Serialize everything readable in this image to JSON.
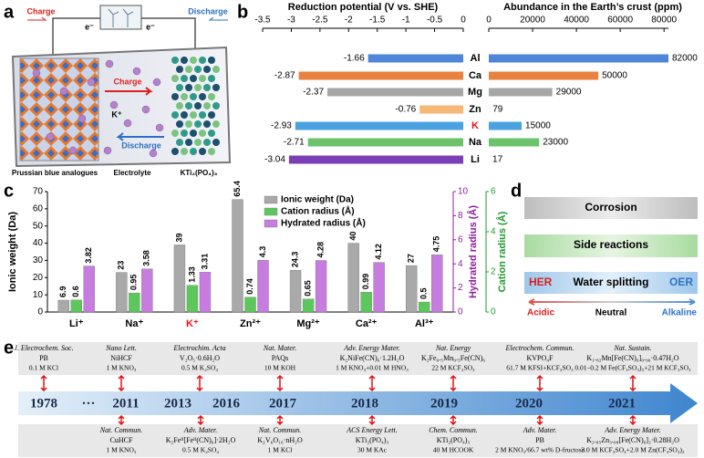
{
  "panel_labels": [
    "a",
    "b",
    "c",
    "d",
    "e"
  ],
  "panel_a": {
    "charge_top": "Charge",
    "e_left": "e⁻",
    "e_right": "e⁻",
    "discharge_top": "Discharge",
    "charge": "Charge",
    "ion": "K⁺",
    "discharge": "Discharge",
    "anode": "Prussian blue analogues",
    "electrolyte": "Electrolyte",
    "cathode": "KTi₂(PO₄)₃"
  },
  "chart_data": [
    {
      "type": "bar",
      "orientation": "horizontal",
      "categories": [
        "Al",
        "Ca",
        "Mg",
        "Zn",
        "K",
        "Na",
        "Li"
      ],
      "category_label_colors": [
        "#000000",
        "#000000",
        "#000000",
        "#000000",
        "#e8101a",
        "#000000",
        "#000000"
      ],
      "bar_colors": [
        "#4f86d8",
        "#e9823e",
        "#a6a6a6",
        "#f6b878",
        "#4aa3e0",
        "#6cc36c",
        "#7a3fb5"
      ],
      "series": [
        {
          "name": "Reduction potential (V vs. SHE)",
          "values": [
            -1.66,
            -2.87,
            -2.37,
            -0.76,
            -2.93,
            -2.71,
            -3.04
          ],
          "xlim": [
            -3.5,
            0
          ],
          "xticks": [
            -3.5,
            -3,
            -2.5,
            -2,
            -1.5,
            -1,
            -0.5,
            0
          ]
        },
        {
          "name": "Abundance in the Earth’s crust (ppm)",
          "values": [
            82000,
            50000,
            29000,
            79,
            15000,
            23000,
            17
          ],
          "xlim": [
            0,
            82000
          ],
          "xticks": [
            0,
            20000,
            40000,
            60000,
            80000
          ]
        }
      ]
    },
    {
      "type": "bar",
      "orientation": "vertical",
      "categories": [
        "Li⁺",
        "Na⁺",
        "K⁺",
        "Zn²⁺",
        "Mg²⁺",
        "Ca²⁺",
        "Al³⁺"
      ],
      "category_label_colors": [
        "#000000",
        "#000000",
        "#e8101a",
        "#000000",
        "#000000",
        "#000000",
        "#000000"
      ],
      "series": [
        {
          "name": "Ionic weight (Da)",
          "color": "#a9a9a9",
          "axis": "y",
          "values": [
            6.9,
            23,
            39,
            65.4,
            24.3,
            40,
            27
          ]
        },
        {
          "name": "Cation radius (Å)",
          "color": "#5cc85c",
          "axis": "y3",
          "values": [
            0.6,
            0.95,
            1.33,
            0.74,
            0.65,
            0.99,
            0.5
          ]
        },
        {
          "name": "Hydrated radius (Å)",
          "color": "#c77ce0",
          "axis": "y2",
          "values": [
            3.82,
            3.58,
            3.31,
            4.3,
            4.28,
            4.12,
            4.75
          ]
        }
      ],
      "ylabel": "Ionic weight (Da)",
      "ylim": [
        0,
        70
      ],
      "yticks": [
        0,
        10,
        20,
        30,
        40,
        50,
        60,
        70
      ],
      "y2label": "Hydrated radius (Å)",
      "y2color": "#8e1f9e",
      "y2lim": [
        0,
        10
      ],
      "y2ticks": [
        0,
        2,
        4,
        6,
        8,
        10
      ],
      "y3label": "Cation radius (Å)",
      "y3color": "#1f9a2e",
      "y3lim": [
        0,
        6
      ],
      "y3ticks": [
        0,
        2,
        4,
        6
      ]
    }
  ],
  "panel_d": {
    "bars": [
      "Corrosion",
      "Side reactions",
      "Water splitting"
    ],
    "her": "HER",
    "oer": "OER",
    "scale": [
      "Acidic",
      "Neutral",
      "Alkaline"
    ]
  },
  "panel_e": {
    "years": [
      "1978",
      "···",
      "2011",
      "2013",
      "2016",
      "2017",
      "2018",
      "2019",
      "2020",
      "2021"
    ],
    "top": [
      {
        "journal": "J. Electrochem. Soc.",
        "material": "PB",
        "electrolyte": "0.1 M KCl"
      },
      {
        "journal": "Nano Lett.",
        "material": "NiHCF",
        "electrolyte": "1 M KNO₃"
      },
      {
        "journal": "Electrochim. Acta",
        "material": "V₂O₅·0.6H₂O",
        "electrolyte": "0.5 M K₂SO₄"
      },
      {
        "journal": "Nat. Mater.",
        "material": "PAQs",
        "electrolyte": "10 M KOH"
      },
      {
        "journal": "Adv. Energy Mater.",
        "material": "K₂NiFe(CN)₆·1.2H₂O",
        "electrolyte": "1 M KNO₃+0.01 M HNO₃"
      },
      {
        "journal": "Nat. Energy",
        "material": "K₂Fe₀.₅Mn₀.₅Fe(CN)₆",
        "electrolyte": "22 M KCF₃SO₃"
      },
      {
        "journal": "Electrochem. Commun.",
        "material": "KVPO₄F",
        "electrolyte": "61.7 M KFSI+KCF₃SO₃"
      },
      {
        "journal": "Nat. Sustain.",
        "material": "K₁.₈₂Mn[Fe(CN)₆]₀.₉₆·0.47H₂O",
        "electrolyte": "0.01–0.2 M Fe(CF₃SO₃)₃+21 M KCF₃SO₃"
      }
    ],
    "bottom": [
      {
        "journal": "Nat. Commun.",
        "material": "CuHCF",
        "electrolyte": "1 M KNO₃"
      },
      {
        "journal": "Adv. Mater.",
        "material": "K₂Feᴵᴵ[Feᴵᴵ(CN)₆]·2H₂O",
        "electrolyte": "0.5 M K₂SO₄"
      },
      {
        "journal": "Nat. Commun.",
        "material": "K₂V₆O₁₆·nH₂O",
        "electrolyte": "1 M KCl"
      },
      {
        "journal": "ACS Energy Lett.",
        "material": "KTi₂(PO₄)₃",
        "electrolyte": "30 M KAc"
      },
      {
        "journal": "Chem. Commun.",
        "material": "KTi₂(PO₄)₃",
        "electrolyte": "40 M HCOOK"
      },
      {
        "journal": "Adv. Mater.",
        "material": "PB",
        "electrolyte": "2 M KNO₃/66.7 wt% D-fructose"
      },
      {
        "journal": "Adv. Energy Mater.",
        "material": "K₂.₈₅Zn₃.₀₈[Fe(CN)₆]₂·0.28H₂O",
        "electrolyte": "3.0 M KCF₃SO₃+2.0 M Zn(CF₃SO₃)₂"
      }
    ]
  }
}
